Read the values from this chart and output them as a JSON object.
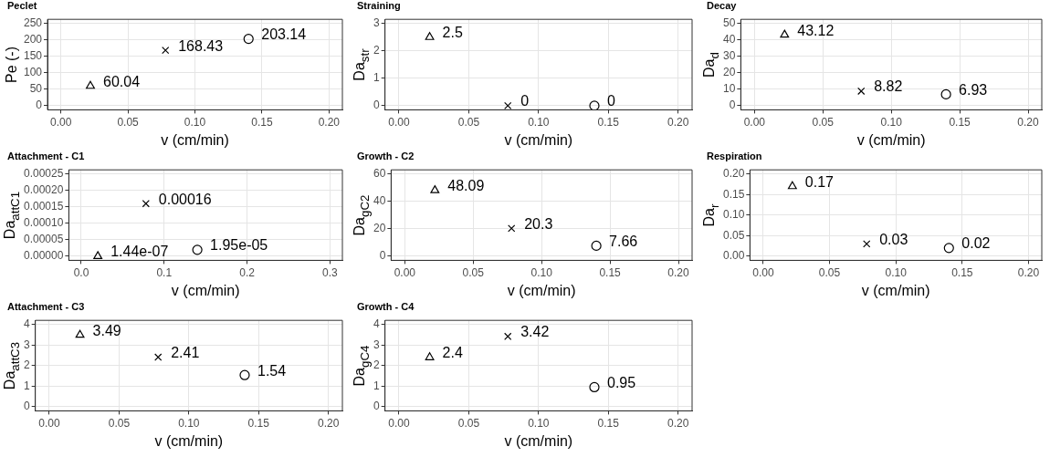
{
  "chart_data": [
    {
      "type": "scatter",
      "title": "Peclet",
      "xlabel": "v (cm/min)",
      "ylabel": "Pe (-)",
      "xlim": [
        -0.01,
        0.21
      ],
      "xticks": [
        {
          "value": 0,
          "label": "0.00"
        },
        {
          "value": 0.05,
          "label": "0.05"
        },
        {
          "value": 0.1,
          "label": "0.10"
        },
        {
          "value": 0.15,
          "label": "0.15"
        },
        {
          "value": 0.2,
          "label": "0.20"
        }
      ],
      "ylim": [
        -12.5,
        262.5
      ],
      "yticks": [
        0,
        50,
        100,
        150,
        200,
        250
      ],
      "grid": true,
      "data_labels": true,
      "series": [
        {
          "x": [
            0.022
          ],
          "values": [
            60.04
          ],
          "color": "#000000",
          "marker": "triangle"
        },
        {
          "x": [
            0.078
          ],
          "values": [
            168.43
          ],
          "color": "#000000",
          "marker": "cross"
        },
        {
          "x": [
            0.14
          ],
          "values": [
            203.14
          ],
          "color": "#000000",
          "marker": "circle"
        }
      ]
    },
    {
      "type": "scatter",
      "title": "Straining",
      "xlabel": "v (cm/min)",
      "ylabel": "Da$_{str}$",
      "xlim": [
        -0.01,
        0.21
      ],
      "xticks": [
        {
          "value": 0,
          "label": "0.00"
        },
        {
          "value": 0.05,
          "label": "0.05"
        },
        {
          "value": 0.1,
          "label": "0.10"
        },
        {
          "value": 0.15,
          "label": "0.15"
        },
        {
          "value": 0.2,
          "label": "0.20"
        }
      ],
      "ylim": [
        -0.15,
        3.15
      ],
      "yticks": [
        0,
        1,
        2,
        3
      ],
      "grid": true,
      "data_labels": true,
      "series": [
        {
          "x": [
            0.022
          ],
          "values": [
            2.5
          ],
          "color": "#000000",
          "marker": "triangle"
        },
        {
          "x": [
            0.078
          ],
          "values": [
            0
          ],
          "color": "#000000",
          "marker": "cross"
        },
        {
          "x": [
            0.14
          ],
          "values": [
            0
          ],
          "color": "#000000",
          "marker": "circle"
        }
      ]
    },
    {
      "type": "scatter",
      "title": "Decay",
      "xlabel": "v (cm/min)",
      "ylabel": "Da$_{d}$",
      "xlim": [
        -0.01,
        0.21
      ],
      "xticks": [
        {
          "value": 0,
          "label": "0.00"
        },
        {
          "value": 0.05,
          "label": "0.05"
        },
        {
          "value": 0.1,
          "label": "0.10"
        },
        {
          "value": 0.15,
          "label": "0.15"
        },
        {
          "value": 0.2,
          "label": "0.20"
        }
      ],
      "ylim": [
        -2.5,
        52.5
      ],
      "yticks": [
        0,
        10,
        20,
        30,
        40,
        50
      ],
      "grid": true,
      "data_labels": true,
      "series": [
        {
          "x": [
            0.022
          ],
          "values": [
            43.12
          ],
          "color": "#000000",
          "marker": "triangle"
        },
        {
          "x": [
            0.078
          ],
          "values": [
            8.82
          ],
          "color": "#000000",
          "marker": "cross"
        },
        {
          "x": [
            0.14
          ],
          "values": [
            6.93
          ],
          "color": "#000000",
          "marker": "circle"
        }
      ]
    },
    {
      "type": "scatter",
      "title": "Attachment - C1",
      "xlabel": "v (cm/min)",
      "ylabel": "Da$_{attC1}$",
      "xlim": [
        -0.015,
        0.315
      ],
      "xticks": [
        {
          "value": 0,
          "label": "0.0"
        },
        {
          "value": 0.1,
          "label": "0.1"
        },
        {
          "value": 0.2,
          "label": "0.2"
        },
        {
          "value": 0.3,
          "label": "0.3"
        }
      ],
      "ylim": [
        -1.25e-05,
        0.0002625
      ],
      "yticks": [
        {
          "value": 0,
          "label": "0.00000"
        },
        {
          "value": 5e-05,
          "label": "0.00005"
        },
        {
          "value": 0.0001,
          "label": "0.00010"
        },
        {
          "value": 0.00015,
          "label": "0.00015"
        },
        {
          "value": 0.0002,
          "label": "0.00020"
        },
        {
          "value": 0.00025,
          "label": "0.00025"
        }
      ],
      "grid": true,
      "series": [
        {
          "x": [
            0.02
          ],
          "values": [
            1.44e-07
          ],
          "value_labels": [
            "1.44e-07"
          ],
          "color": "#000000",
          "marker": "triangle"
        },
        {
          "x": [
            0.078
          ],
          "values": [
            0.00016
          ],
          "value_labels": [
            "0.00016"
          ],
          "color": "#000000",
          "marker": "cross"
        },
        {
          "x": [
            0.14
          ],
          "values": [
            1.95e-05
          ],
          "value_labels": [
            "1.95e-05"
          ],
          "color": "#000000",
          "marker": "circle"
        }
      ]
    },
    {
      "type": "scatter",
      "title": "Growth - C2",
      "xlabel": "v (cm/min)",
      "ylabel": "Da$_{gC2}$",
      "xlim": [
        -0.01,
        0.21
      ],
      "xticks": [
        {
          "value": 0,
          "label": "0.00"
        },
        {
          "value": 0.05,
          "label": "0.05"
        },
        {
          "value": 0.1,
          "label": "0.10"
        },
        {
          "value": 0.15,
          "label": "0.15"
        },
        {
          "value": 0.2,
          "label": "0.20"
        }
      ],
      "ylim": [
        -3,
        63
      ],
      "yticks": [
        0,
        20,
        40,
        60
      ],
      "grid": true,
      "data_labels": true,
      "series": [
        {
          "x": [
            0.022
          ],
          "values": [
            48.09
          ],
          "color": "#000000",
          "marker": "triangle"
        },
        {
          "x": [
            0.078
          ],
          "values": [
            20.3
          ],
          "color": "#000000",
          "marker": "cross"
        },
        {
          "x": [
            0.14
          ],
          "values": [
            7.66
          ],
          "color": "#000000",
          "marker": "circle"
        }
      ]
    },
    {
      "type": "scatter",
      "title": "Respiration",
      "xlabel": "v (cm/min)",
      "ylabel": "Da$_{r}$",
      "xlim": [
        -0.01,
        0.21
      ],
      "xticks": [
        {
          "value": 0,
          "label": "0.00"
        },
        {
          "value": 0.05,
          "label": "0.05"
        },
        {
          "value": 0.1,
          "label": "0.10"
        },
        {
          "value": 0.15,
          "label": "0.15"
        },
        {
          "value": 0.2,
          "label": "0.20"
        }
      ],
      "ylim": [
        -0.01,
        0.21
      ],
      "yticks": [
        {
          "value": 0,
          "label": "0.00"
        },
        {
          "value": 0.05,
          "label": "0.05"
        },
        {
          "value": 0.1,
          "label": "0.10"
        },
        {
          "value": 0.15,
          "label": "0.15"
        },
        {
          "value": 0.2,
          "label": "0.20"
        }
      ],
      "grid": true,
      "data_labels": true,
      "series": [
        {
          "x": [
            0.022
          ],
          "values": [
            0.17
          ],
          "color": "#000000",
          "marker": "triangle"
        },
        {
          "x": [
            0.078
          ],
          "values": [
            0.03
          ],
          "color": "#000000",
          "marker": "cross"
        },
        {
          "x": [
            0.14
          ],
          "values": [
            0.02
          ],
          "color": "#000000",
          "marker": "circle"
        }
      ]
    },
    {
      "type": "scatter",
      "title": "Attachment - C3",
      "xlabel": "v (cm/min)",
      "ylabel": "Da$_{attC3}$",
      "xlim": [
        -0.01,
        0.21
      ],
      "xticks": [
        {
          "value": 0,
          "label": "0.00"
        },
        {
          "value": 0.05,
          "label": "0.05"
        },
        {
          "value": 0.1,
          "label": "0.10"
        },
        {
          "value": 0.15,
          "label": "0.15"
        },
        {
          "value": 0.2,
          "label": "0.20"
        }
      ],
      "ylim": [
        -0.2,
        4.2
      ],
      "yticks": [
        0,
        1,
        2,
        3,
        4
      ],
      "grid": true,
      "data_labels": true,
      "series": [
        {
          "x": [
            0.022
          ],
          "values": [
            3.49
          ],
          "color": "#000000",
          "marker": "triangle"
        },
        {
          "x": [
            0.078
          ],
          "values": [
            2.41
          ],
          "color": "#000000",
          "marker": "cross"
        },
        {
          "x": [
            0.14
          ],
          "values": [
            1.54
          ],
          "color": "#000000",
          "marker": "circle"
        }
      ]
    },
    {
      "type": "scatter",
      "title": "Growth - C4",
      "xlabel": "v (cm/min)",
      "ylabel": "Da$_{gC4}$",
      "xlim": [
        -0.01,
        0.21
      ],
      "xticks": [
        {
          "value": 0,
          "label": "0.00"
        },
        {
          "value": 0.05,
          "label": "0.05"
        },
        {
          "value": 0.1,
          "label": "0.10"
        },
        {
          "value": 0.15,
          "label": "0.15"
        },
        {
          "value": 0.2,
          "label": "0.20"
        }
      ],
      "ylim": [
        -0.2,
        4.2
      ],
      "yticks": [
        0,
        1,
        2,
        3,
        4
      ],
      "grid": true,
      "data_labels": true,
      "series": [
        {
          "x": [
            0.022
          ],
          "values": [
            2.4
          ],
          "color": "#000000",
          "marker": "triangle"
        },
        {
          "x": [
            0.078
          ],
          "values": [
            3.42
          ],
          "color": "#000000",
          "marker": "cross"
        },
        {
          "x": [
            0.14
          ],
          "values": [
            0.95
          ],
          "color": "#000000",
          "marker": "circle"
        }
      ]
    }
  ]
}
